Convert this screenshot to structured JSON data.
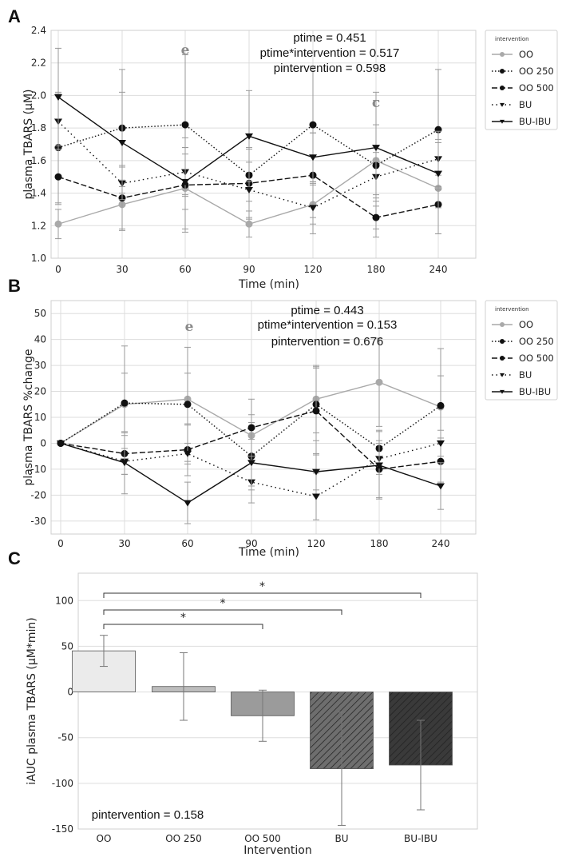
{
  "chart_data": [
    {
      "panel": "A",
      "type": "line",
      "xlabel": "Time (min)",
      "ylabel": "plasma TBARS (μM)",
      "x": [
        0,
        30,
        60,
        90,
        120,
        180,
        240
      ],
      "x_ticks": [
        "0",
        "30",
        "60",
        "90",
        "120",
        "180",
        "240"
      ],
      "ylim": [
        1.0,
        2.4
      ],
      "y_ticks": [
        "1.0",
        "1.2",
        "1.4",
        "1.6",
        "1.8",
        "2.0",
        "2.2",
        "2.4"
      ],
      "y_tick_values": [
        1.0,
        1.2,
        1.4,
        1.6,
        1.8,
        2.0,
        2.2,
        2.4
      ],
      "annotations": [
        "ptime = 0.451",
        "ptime*intervention = 0.517",
        "pintervention = 0.598"
      ],
      "sig_marks": [
        {
          "label": "e",
          "x_index": 2
        },
        {
          "label": "c",
          "x_index": 5
        }
      ],
      "legend_title": "intervention",
      "series": [
        {
          "name": "OO",
          "style": "gray-circle",
          "values": [
            1.21,
            1.33,
            1.43,
            1.21,
            1.33,
            1.6,
            1.43
          ],
          "err": [
            0.09,
            0.15,
            0.25,
            0.08,
            0.12,
            0.42,
            0.28
          ]
        },
        {
          "name": "OO 250",
          "style": "dotted-circle",
          "values": [
            1.68,
            1.8,
            1.82,
            1.51,
            1.82,
            1.57,
            1.79
          ],
          "err": [
            0.34,
            0.36,
            0.43,
            0.16,
            0.36,
            0.25,
            0.37
          ]
        },
        {
          "name": "OO 500",
          "style": "dashed-circle",
          "values": [
            1.5,
            1.37,
            1.45,
            1.46,
            1.51,
            1.25,
            1.33
          ],
          "err": [
            0.17,
            0.2,
            0.29,
            0.22,
            0.26,
            0.12,
            0.18
          ]
        },
        {
          "name": "BU",
          "style": "dotted-triangle",
          "values": [
            1.84,
            1.46,
            1.53,
            1.42,
            1.31,
            1.5,
            1.61
          ],
          "err": [
            0.17,
            0.1,
            0.15,
            0.17,
            0.16,
            0.15,
            0.17
          ]
        },
        {
          "name": "BU-IBU",
          "style": "solid-triangle",
          "values": [
            1.99,
            1.71,
            1.47,
            1.75,
            1.62,
            1.68,
            1.52
          ],
          "err": [
            0.3,
            0.31,
            0.17,
            0.28,
            0.15,
            0.29,
            0.21
          ]
        }
      ]
    },
    {
      "panel": "B",
      "type": "line",
      "xlabel": "Time (min)",
      "ylabel": "plasma TBARS %change",
      "x": [
        0,
        30,
        60,
        90,
        120,
        180,
        240
      ],
      "x_ticks": [
        "0",
        "30",
        "60",
        "90",
        "120",
        "180",
        "240"
      ],
      "ylim": [
        -35,
        55
      ],
      "y_ticks": [
        "-30",
        "-20",
        "-10",
        "0",
        "10",
        "20",
        "30",
        "40",
        "50"
      ],
      "y_tick_values": [
        -30,
        -20,
        -10,
        0,
        10,
        20,
        30,
        40,
        50
      ],
      "annotations": [
        "ptime = 0.443",
        "ptime*intervention = 0.153",
        "pintervention = 0.676"
      ],
      "sig_marks": [
        {
          "label": "e",
          "x_index": 2
        }
      ],
      "legend_title": "intervention",
      "series": [
        {
          "name": "OO",
          "style": "gray-circle",
          "values": [
            0,
            15,
            17,
            3,
            17,
            23.5,
            14
          ],
          "err": [
            0,
            12,
            10,
            8,
            13,
            17,
            12
          ]
        },
        {
          "name": "OO 250",
          "style": "dotted-circle",
          "values": [
            0,
            15.5,
            15,
            -5,
            15,
            -2,
            14.5
          ],
          "err": [
            0,
            22,
            22,
            13,
            14,
            7,
            22
          ]
        },
        {
          "name": "OO 500",
          "style": "dashed-circle",
          "values": [
            0,
            -4,
            -2.5,
            6,
            12.5,
            -10,
            -7
          ],
          "err": [
            0,
            8,
            10,
            11,
            17,
            11,
            8
          ]
        },
        {
          "name": "BU",
          "style": "dotted-triangle",
          "values": [
            0,
            -7,
            -4,
            -15,
            -20.5,
            -6,
            0
          ],
          "err": [
            0,
            5,
            4,
            8,
            9,
            6,
            5
          ]
        },
        {
          "name": "BU-IBU",
          "style": "solid-triangle",
          "values": [
            0,
            -7.5,
            -23,
            -7.5,
            -11,
            -8.5,
            -16.5
          ],
          "err": [
            0,
            12,
            8,
            9,
            7,
            13,
            9
          ]
        }
      ]
    },
    {
      "panel": "C",
      "type": "bar",
      "xlabel": "Intervention",
      "ylabel": "iAUC plasma TBARS (μM*min)",
      "categories": [
        "OO",
        "OO 250",
        "OO 500",
        "BU",
        "BU-IBU"
      ],
      "values": [
        45,
        6,
        -26,
        -84,
        -80
      ],
      "err": [
        17,
        37,
        28,
        62,
        49
      ],
      "ylim": [
        -150,
        130
      ],
      "y_ticks": [
        "-150",
        "-100",
        "-50",
        "0",
        "50",
        "100"
      ],
      "y_tick_values": [
        -150,
        -100,
        -50,
        0,
        50,
        100
      ],
      "annotation": "pintervention = 0.158",
      "significance": [
        {
          "from": "OO",
          "to": "OO 500",
          "label": "*"
        },
        {
          "from": "OO",
          "to": "BU",
          "label": "*"
        },
        {
          "from": "OO",
          "to": "BU-IBU",
          "label": "*"
        }
      ]
    }
  ]
}
